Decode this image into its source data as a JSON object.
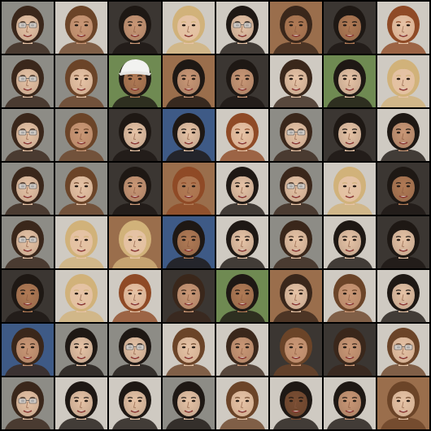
{
  "grid": {
    "rows": 8,
    "cols": 8,
    "content": "face-portrait"
  },
  "palette": {
    "background": "#000000",
    "tones": {
      "skin_light": "#e6c3a6",
      "skin_mid": "#c99776",
      "skin_tan": "#b07a55",
      "skin_dark": "#7a4e33",
      "hair_black": "#1e1814",
      "hair_dark": "#3a271b",
      "hair_brown": "#6b4428",
      "hair_auburn": "#8f4a26",
      "hair_blonde": "#d1b27a",
      "bg_gray": "#8d8c86",
      "bg_light": "#cfcac2",
      "bg_dark": "#3b3632",
      "bg_warm": "#9a6e4c",
      "bg_blue": "#3e5a86",
      "bg_green": "#6f8a52"
    }
  },
  "tiles": [
    [
      "skin_light",
      "hair_dark",
      "bg_gray",
      "glasses"
    ],
    [
      "skin_mid",
      "hair_brown",
      "bg_light",
      ""
    ],
    [
      "skin_mid",
      "hair_black",
      "bg_dark",
      ""
    ],
    [
      "skin_light",
      "hair_blonde",
      "bg_light",
      ""
    ],
    [
      "skin_light",
      "hair_black",
      "bg_light",
      "glasses"
    ],
    [
      "skin_tan",
      "hair_dark",
      "bg_warm",
      ""
    ],
    [
      "skin_tan",
      "hair_black",
      "bg_dark",
      ""
    ],
    [
      "skin_light",
      "hair_auburn",
      "bg_light",
      ""
    ],
    [
      "skin_light",
      "hair_dark",
      "bg_gray",
      "glasses"
    ],
    [
      "skin_light",
      "hair_brown",
      "bg_gray",
      ""
    ],
    [
      "skin_tan",
      "hair_black",
      "bg_green",
      "cap"
    ],
    [
      "skin_mid",
      "hair_black",
      "bg_warm",
      ""
    ],
    [
      "skin_mid",
      "hair_black",
      "bg_dark",
      ""
    ],
    [
      "skin_light",
      "hair_dark",
      "bg_light",
      ""
    ],
    [
      "skin_light",
      "hair_black",
      "bg_green",
      ""
    ],
    [
      "skin_light",
      "hair_blonde",
      "bg_light",
      ""
    ],
    [
      "skin_light",
      "hair_dark",
      "bg_gray",
      "glasses"
    ],
    [
      "skin_mid",
      "hair_brown",
      "bg_gray",
      ""
    ],
    [
      "skin_light",
      "hair_black",
      "bg_dark",
      ""
    ],
    [
      "skin_light",
      "hair_black",
      "bg_blue",
      ""
    ],
    [
      "skin_light",
      "hair_auburn",
      "bg_light",
      ""
    ],
    [
      "skin_light",
      "hair_dark",
      "bg_gray",
      "glasses"
    ],
    [
      "skin_light",
      "hair_black",
      "bg_dark",
      ""
    ],
    [
      "skin_mid",
      "hair_black",
      "bg_light",
      ""
    ],
    [
      "skin_light",
      "hair_dark",
      "bg_gray",
      "glasses"
    ],
    [
      "skin_light",
      "hair_brown",
      "bg_gray",
      ""
    ],
    [
      "skin_mid",
      "hair_black",
      "bg_dark",
      ""
    ],
    [
      "skin_tan",
      "hair_auburn",
      "bg_warm",
      ""
    ],
    [
      "skin_light",
      "hair_black",
      "bg_light",
      ""
    ],
    [
      "skin_light",
      "hair_dark",
      "bg_gray",
      "glasses"
    ],
    [
      "skin_light",
      "hair_blonde",
      "bg_light",
      ""
    ],
    [
      "skin_tan",
      "hair_black",
      "bg_dark",
      ""
    ],
    [
      "skin_light",
      "hair_dark",
      "bg_gray",
      "glasses"
    ],
    [
      "skin_light",
      "hair_blonde",
      "bg_light",
      ""
    ],
    [
      "skin_light",
      "hair_blonde",
      "bg_warm",
      ""
    ],
    [
      "skin_tan",
      "hair_black",
      "bg_blue",
      ""
    ],
    [
      "skin_light",
      "hair_black",
      "bg_light",
      ""
    ],
    [
      "skin_light",
      "hair_dark",
      "bg_gray",
      ""
    ],
    [
      "skin_light",
      "hair_black",
      "bg_light",
      ""
    ],
    [
      "skin_light",
      "hair_black",
      "bg_dark",
      ""
    ],
    [
      "skin_tan",
      "hair_black",
      "bg_dark",
      ""
    ],
    [
      "skin_light",
      "hair_blonde",
      "bg_light",
      ""
    ],
    [
      "skin_light",
      "hair_auburn",
      "bg_light",
      ""
    ],
    [
      "skin_mid",
      "hair_dark",
      "bg_dark",
      ""
    ],
    [
      "skin_tan",
      "hair_black",
      "bg_green",
      ""
    ],
    [
      "skin_light",
      "hair_dark",
      "bg_warm",
      ""
    ],
    [
      "skin_mid",
      "hair_brown",
      "bg_light",
      ""
    ],
    [
      "skin_light",
      "hair_black",
      "bg_light",
      ""
    ],
    [
      "skin_mid",
      "hair_dark",
      "bg_blue",
      ""
    ],
    [
      "skin_light",
      "hair_black",
      "bg_gray",
      ""
    ],
    [
      "skin_light",
      "hair_black",
      "bg_gray",
      "glasses"
    ],
    [
      "skin_light",
      "hair_brown",
      "bg_light",
      ""
    ],
    [
      "skin_mid",
      "hair_dark",
      "bg_light",
      ""
    ],
    [
      "skin_mid",
      "hair_brown",
      "bg_dark",
      ""
    ],
    [
      "skin_mid",
      "hair_dark",
      "bg_dark",
      ""
    ],
    [
      "skin_light",
      "hair_brown",
      "bg_light",
      "glasses"
    ],
    [
      "skin_light",
      "hair_dark",
      "bg_gray",
      "glasses"
    ],
    [
      "skin_light",
      "hair_black",
      "bg_light",
      ""
    ],
    [
      "skin_light",
      "hair_black",
      "bg_light",
      ""
    ],
    [
      "skin_light",
      "hair_black",
      "bg_gray",
      ""
    ],
    [
      "skin_light",
      "hair_brown",
      "bg_light",
      ""
    ],
    [
      "skin_dark",
      "hair_black",
      "bg_light",
      ""
    ],
    [
      "skin_mid",
      "hair_black",
      "bg_light",
      ""
    ],
    [
      "skin_light",
      "hair_brown",
      "bg_warm",
      ""
    ]
  ]
}
